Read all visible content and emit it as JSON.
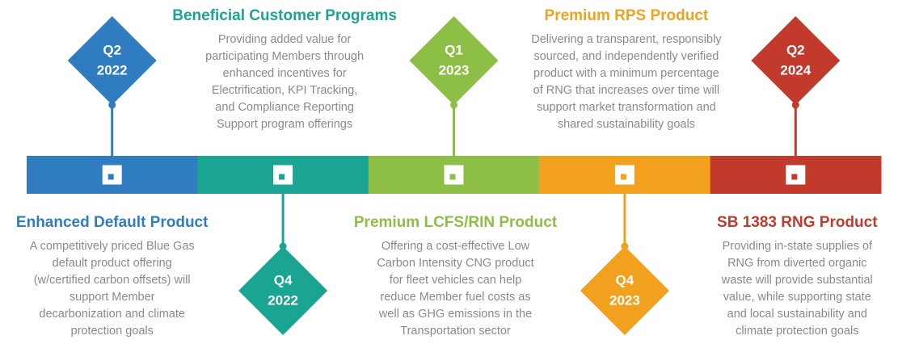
{
  "milestones": [
    {
      "quarter": "Q2",
      "year": "2022",
      "color": "#2f7dc0",
      "title": "Enhanced Default Product",
      "description": [
        "A competitively priced Blue Gas",
        "default product offering",
        "(w/certified carbon offsets) will",
        "support Member",
        "decarbonization and climate",
        "protection goals"
      ]
    },
    {
      "quarter": "Q4",
      "year": "2022",
      "color": "#19a592",
      "title": "Beneficial Customer Programs",
      "description": [
        "Providing added value for",
        "participating Members through",
        "enhanced incentives for",
        "Electrification, KPI Tracking,",
        "and Compliance Reporting",
        "Support program offerings"
      ]
    },
    {
      "quarter": "Q1",
      "year": "2023",
      "color": "#8dbf46",
      "title": "Premium LCFS/RIN Product",
      "description": [
        "Offering a cost-effective Low",
        "Carbon Intensity CNG product",
        "for fleet vehicles can help",
        "reduce Member fuel costs as",
        "well as GHG emissions in the",
        "Transportation sector"
      ]
    },
    {
      "quarter": "Q4",
      "year": "2023",
      "color": "#f2a11f",
      "title": "Premium RPS Product",
      "description": [
        "Delivering a transparent, responsibly",
        "sourced, and independently verified",
        "product with a minimum percentage",
        "of RNG that increases over time will",
        "support market transformation and",
        "shared sustainability goals"
      ]
    },
    {
      "quarter": "Q2",
      "year": "2024",
      "color": "#c23a2c",
      "title": "SB 1383 RNG Product",
      "description": [
        "Providing in-state supplies of",
        "RNG from diverted organic",
        "waste will provide substantial",
        "value, while supporting state",
        "and local sustainability and",
        "climate protection goals"
      ]
    }
  ]
}
